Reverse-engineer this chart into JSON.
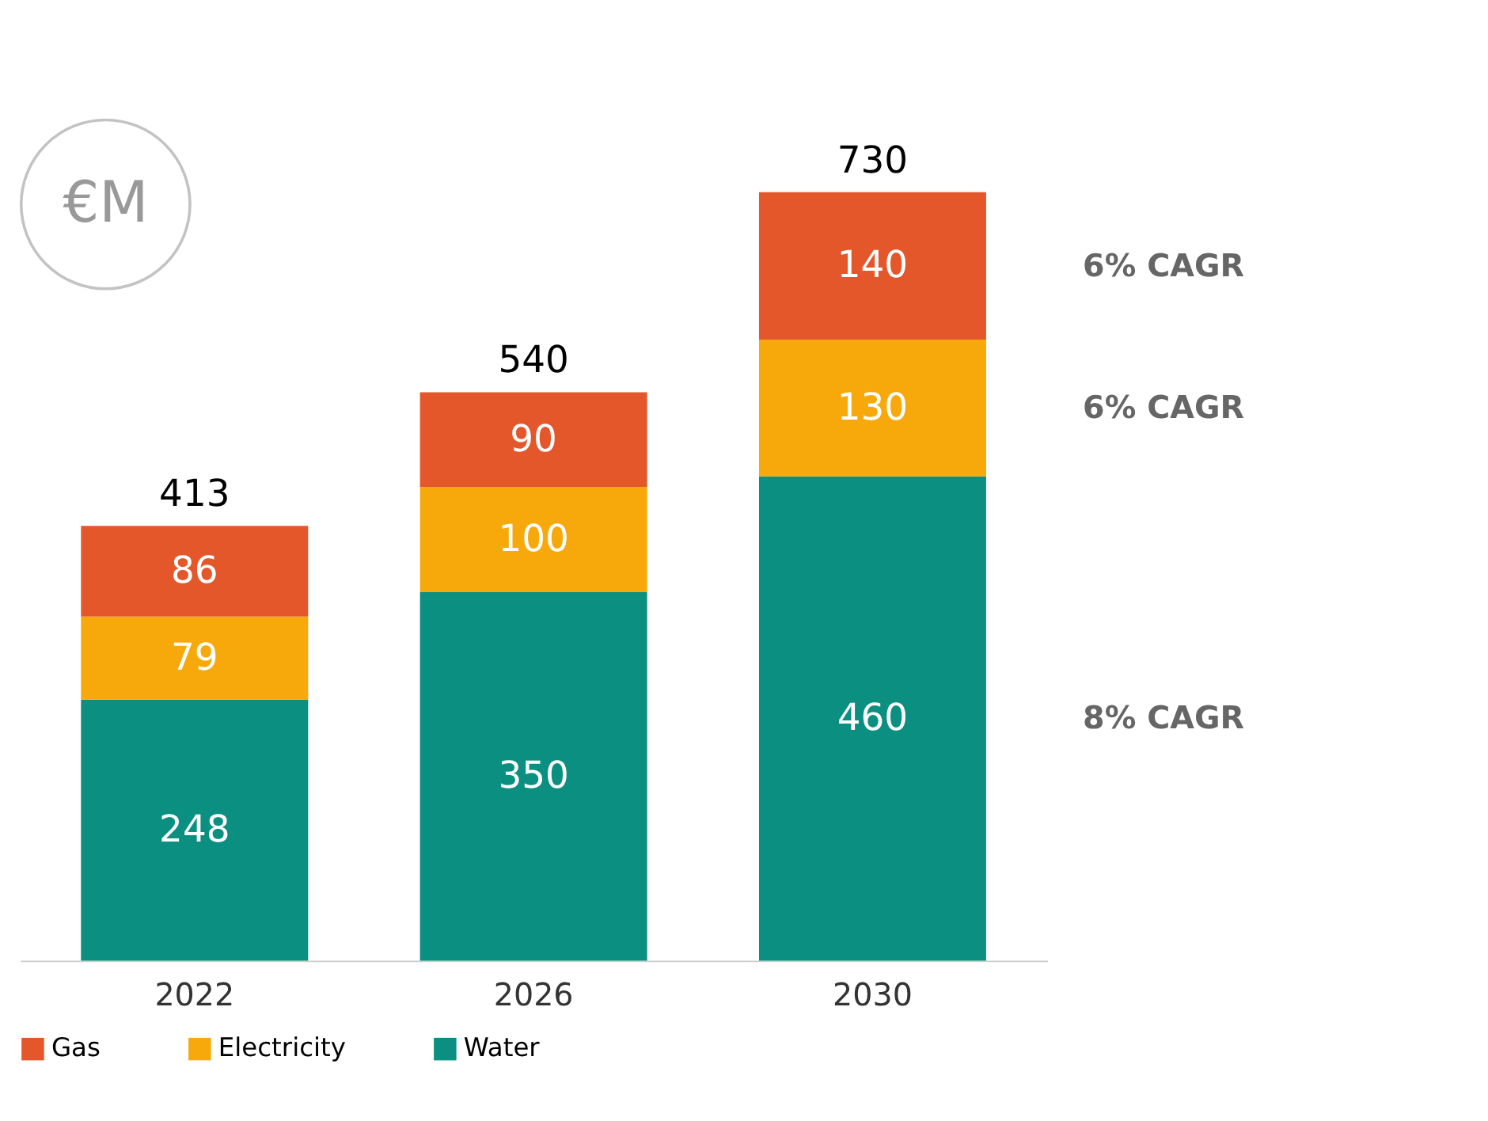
{
  "chart_data": {
    "type": "bar",
    "stacked": true,
    "categories": [
      "2022",
      "2026",
      "2030"
    ],
    "series": [
      {
        "name": "Water",
        "color": "#0a8f80",
        "values": [
          248,
          350,
          460
        ]
      },
      {
        "name": "Electricity",
        "color": "#f7a90c",
        "values": [
          79,
          100,
          130
        ]
      },
      {
        "name": "Gas",
        "color": "#e4572b",
        "values": [
          86,
          90,
          140
        ]
      }
    ],
    "data_labels": true,
    "totals": [
      "413",
      "540",
      "730"
    ],
    "legend": "bottom",
    "grid": false,
    "annotations": [
      "€M",
      "6% CAGR",
      "6% CAGR",
      "8% CAGR"
    ]
  }
}
